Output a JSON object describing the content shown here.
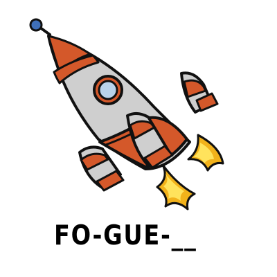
{
  "illustration": {
    "subject": "rocket",
    "colors": {
      "outline": "#111111",
      "body": "#cfcfcf",
      "accent": "#d4582a",
      "window": "#b9d3ea",
      "antenna_ball": "#3f6fb8",
      "flame_outer": "#f2b21b",
      "flame_inner": "#ffe35c"
    },
    "icons": [
      "rocket-icon",
      "flame-icon",
      "window-icon",
      "antenna-icon"
    ]
  },
  "puzzle": {
    "word_text": "FO-GUE-__"
  }
}
